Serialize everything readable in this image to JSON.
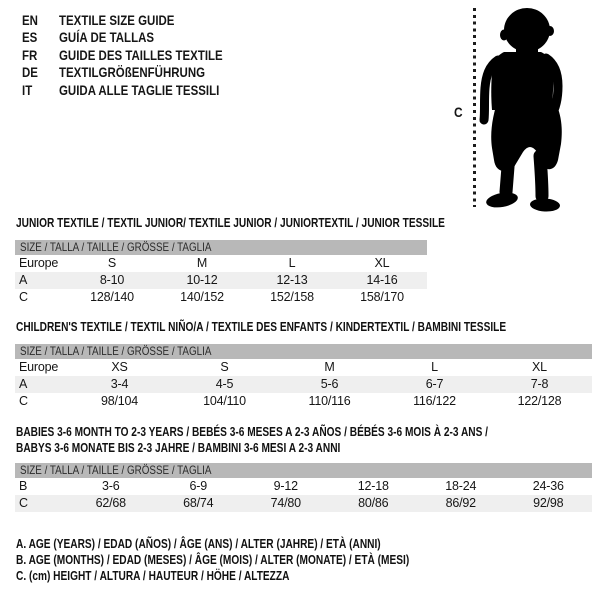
{
  "page": {
    "background": "#ffffff",
    "text_color": "#161616",
    "table_header_color": "#b8b8b8",
    "row_alt_color": "#efefef",
    "silhouette_color": "#000000"
  },
  "languages": [
    {
      "code": "EN",
      "title": "TEXTILE SIZE GUIDE"
    },
    {
      "code": "ES",
      "title": "GUÍA DE TALLAS"
    },
    {
      "code": "FR",
      "title": "GUIDE DES TAILLES TEXTILE"
    },
    {
      "code": "DE",
      "title": "TEXTILGRÖßENFÜHRUNG"
    },
    {
      "code": "IT",
      "title": "GUIDA ALLE TAGLIE TESSILI"
    }
  ],
  "figure": {
    "height_label": "C"
  },
  "sections": [
    {
      "heading_lines": [
        "JUNIOR TEXTILE / TEXTIL JUNIOR/ TEXTILE JUNIOR / JUNIORTEXTIL / JUNIOR TESSILE"
      ],
      "size_header": "SIZE / TALLA / TAILLE / GRÖSSE / TAGLIA",
      "rows": [
        {
          "label": "Europe",
          "cells": [
            "S",
            "M",
            "L",
            "XL"
          ]
        },
        {
          "label": "A",
          "cells": [
            "8-10",
            "10-12",
            "12-13",
            "14-16"
          ]
        },
        {
          "label": "C",
          "cells": [
            "128/140",
            "140/152",
            "152/158",
            "158/170"
          ]
        }
      ]
    },
    {
      "heading_lines": [
        "CHILDREN'S TEXTILE / TEXTIL NIÑO/A / TEXTILE DES ENFANTS / KINDERTEXTIL / BAMBINI TESSILE"
      ],
      "size_header": "SIZE / TALLA / TAILLE / GRÖSSE / TAGLIA",
      "rows": [
        {
          "label": "Europe",
          "cells": [
            "XS",
            "S",
            "M",
            "L",
            "XL"
          ]
        },
        {
          "label": "A",
          "cells": [
            "3-4",
            "4-5",
            "5-6",
            "6-7",
            "7-8"
          ]
        },
        {
          "label": "C",
          "cells": [
            "98/104",
            "104/110",
            "110/116",
            "116/122",
            "122/128"
          ]
        }
      ]
    },
    {
      "heading_lines": [
        "BABIES 3-6 MONTH TO 2-3 YEARS / BEBÉS 3-6 MESES A 2-3 AÑOS / BÉBÉS 3-6 MOIS À 2-3 ANS /",
        "BABYS 3-6 MONATE BIS 2-3 JAHRE / BAMBINI 3-6 MESI A 2-3 ANNI"
      ],
      "size_header": "SIZE / TALLA / TAILLE / GRÖSSE / TAGLIA",
      "rows": [
        {
          "label": "B",
          "cells": [
            "3-6",
            "6-9",
            "9-12",
            "12-18",
            "18-24",
            "24-36"
          ]
        },
        {
          "label": "C",
          "cells": [
            "62/68",
            "68/74",
            "74/80",
            "80/86",
            "86/92",
            "92/98"
          ]
        }
      ]
    }
  ],
  "footnotes": [
    "A. AGE (YEARS) / EDAD (AÑOS) / ÂGE (ANS) / ALTER (JAHRE) / ETÀ (ANNI)",
    "B. AGE (MONTHS) / EDAD (MESES) / ÂGE (MOIS) / ALTER (MONATE) / ETÀ (MESI)",
    "C. (cm) HEIGHT / ALTURA / HAUTEUR / HÖHE / ALTEZZA"
  ]
}
